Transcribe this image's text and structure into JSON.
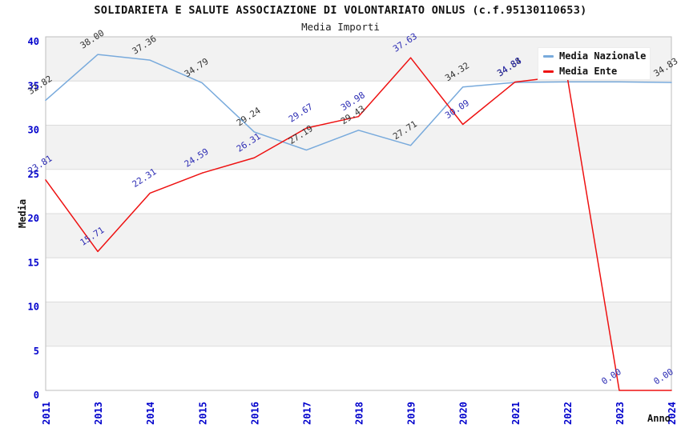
{
  "chart_data": {
    "type": "line",
    "title": "SOLIDARIETA E SALUTE ASSOCIAZIONE DI VOLONTARIATO ONLUS (c.f.95130110653)",
    "subtitle": "Media Importi",
    "xlabel": "Anno",
    "ylabel": "Media",
    "ylim": [
      0,
      40
    ],
    "ytick_step": 5,
    "y_ticks": [
      0,
      5,
      10,
      15,
      20,
      25,
      30,
      35,
      40
    ],
    "grid": "horizontal-bands-alternating",
    "legend_position": "top-right",
    "categories": [
      "2011",
      "2013",
      "2014",
      "2015",
      "2016",
      "2017",
      "2018",
      "2019",
      "2020",
      "2021",
      "2022",
      "2023",
      "2024"
    ],
    "series": [
      {
        "name": "Media Nazionale",
        "color": "#78aadc",
        "label_color": "#333333",
        "values": [
          32.82,
          38.0,
          37.36,
          34.79,
          29.24,
          27.19,
          29.43,
          27.71,
          34.32,
          34.84,
          34.9,
          34.9,
          34.83
        ],
        "point_labels": [
          "32.82",
          "38.00",
          "37.36",
          "34.79",
          "29.24",
          "27.19",
          "29.43",
          "27.71",
          "34.32",
          "34.84",
          null,
          null,
          "34.83"
        ]
      },
      {
        "name": "Media Ente",
        "color": "#ee1111",
        "label_color": "#2c2cb4",
        "values": [
          23.81,
          15.71,
          22.31,
          24.59,
          26.31,
          29.67,
          30.98,
          37.63,
          30.09,
          34.88,
          35.6,
          0.0,
          0.0
        ],
        "point_labels": [
          "23.81",
          "15.71",
          "22.31",
          "24.59",
          "26.31",
          "29.67",
          "30.98",
          "37.63",
          "30.09",
          "34.88",
          null,
          "0.00",
          "0.00"
        ]
      }
    ],
    "colors": {
      "tick_label": "#0000cc",
      "band": "#f2f2f2",
      "grid": "#dcdcdc",
      "plot_border": "#bdbdbd",
      "background": "#ffffff"
    }
  }
}
